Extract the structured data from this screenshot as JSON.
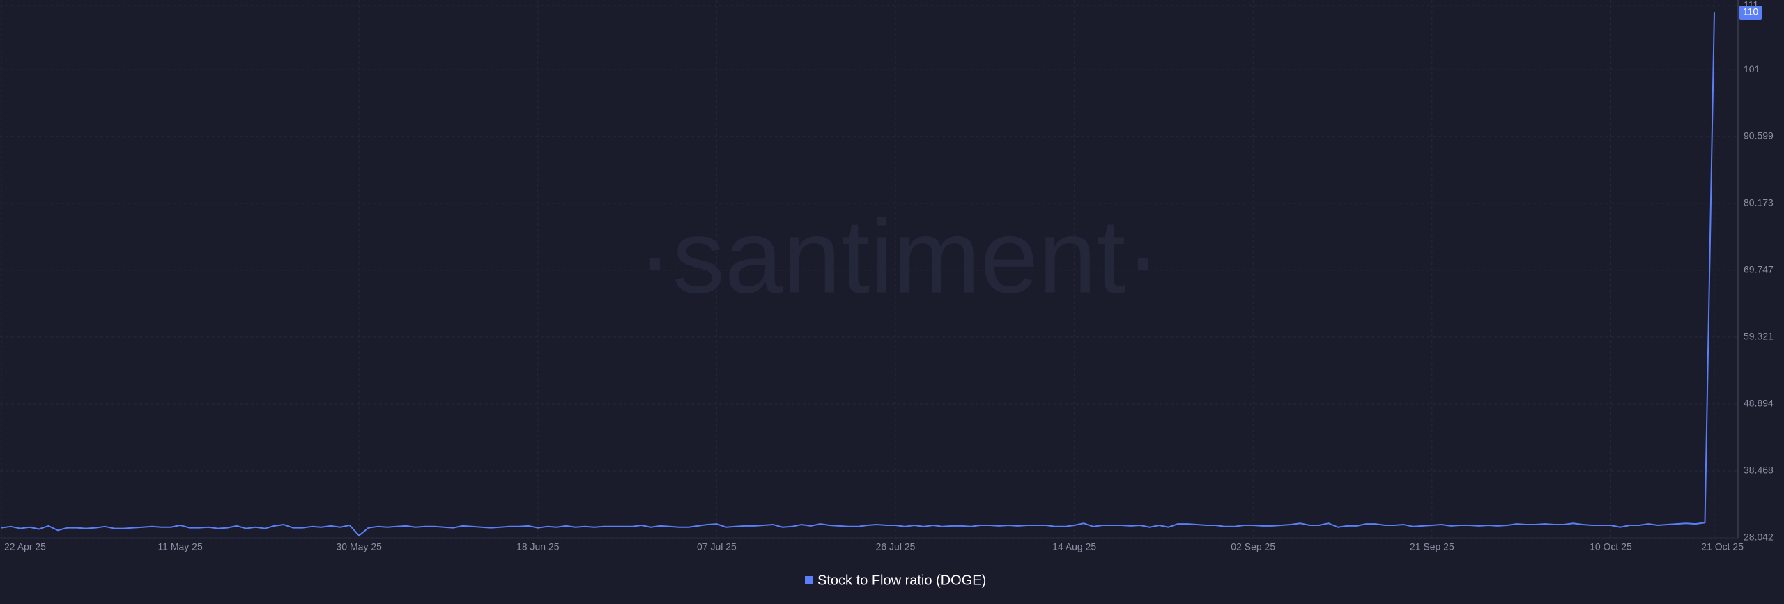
{
  "chart_data": {
    "type": "line",
    "watermark": "·santiment·",
    "categories": [
      "22 Apr 25",
      null,
      null,
      null,
      null,
      null,
      null,
      null,
      null,
      null,
      null,
      null,
      null,
      null,
      null,
      null,
      null,
      null,
      null,
      "11 May 25",
      null,
      null,
      null,
      null,
      null,
      null,
      null,
      null,
      null,
      null,
      null,
      null,
      null,
      null,
      null,
      null,
      null,
      null,
      "30 May 25",
      null,
      null,
      null,
      null,
      null,
      null,
      null,
      null,
      null,
      null,
      null,
      null,
      null,
      null,
      null,
      null,
      null,
      null,
      "18 Jun 25",
      null,
      null,
      null,
      null,
      null,
      null,
      null,
      null,
      null,
      null,
      null,
      null,
      null,
      null,
      null,
      null,
      null,
      null,
      "07 Jul 25",
      null,
      null,
      null,
      null,
      null,
      null,
      null,
      null,
      null,
      null,
      null,
      null,
      null,
      null,
      null,
      null,
      null,
      null,
      "26 Jul 25",
      null,
      null,
      null,
      null,
      null,
      null,
      null,
      null,
      null,
      null,
      null,
      null,
      null,
      null,
      null,
      null,
      null,
      null,
      "14 Aug 25",
      null,
      null,
      null,
      null,
      null,
      null,
      null,
      null,
      null,
      null,
      null,
      null,
      null,
      null,
      null,
      null,
      null,
      null,
      "02 Sep 25",
      null,
      null,
      null,
      null,
      null,
      null,
      null,
      null,
      null,
      null,
      null,
      null,
      null,
      null,
      null,
      null,
      null,
      null,
      "21 Sep 25",
      null,
      null,
      null,
      null,
      null,
      null,
      null,
      null,
      null,
      null,
      null,
      null,
      null,
      null,
      null,
      null,
      null,
      null,
      "10 Oct 25",
      null,
      null,
      null,
      null,
      null,
      null,
      null,
      null,
      null,
      null,
      "21 Oct 25"
    ],
    "series": [
      {
        "name": "Stock to Flow ratio (DOGE)",
        "color": "#5b7ff8",
        "values": [
          29.6,
          29.8,
          29.5,
          29.7,
          29.4,
          29.9,
          29.2,
          29.6,
          29.6,
          29.5,
          29.6,
          29.8,
          29.5,
          29.5,
          29.6,
          29.7,
          29.8,
          29.7,
          29.7,
          30.0,
          29.6,
          29.6,
          29.7,
          29.5,
          29.6,
          29.9,
          29.5,
          29.7,
          29.5,
          29.9,
          30.1,
          29.6,
          29.6,
          29.8,
          29.7,
          29.9,
          29.7,
          30.0,
          28.4,
          29.6,
          29.8,
          29.7,
          29.8,
          29.9,
          29.7,
          29.8,
          29.8,
          29.7,
          29.6,
          29.9,
          29.8,
          29.7,
          29.6,
          29.7,
          29.8,
          29.8,
          29.9,
          29.6,
          29.8,
          29.7,
          29.9,
          29.7,
          29.8,
          29.7,
          29.8,
          29.8,
          29.8,
          29.8,
          30.0,
          29.7,
          29.9,
          29.8,
          29.7,
          29.7,
          29.9,
          30.1,
          30.2,
          29.7,
          29.8,
          29.9,
          29.9,
          30.0,
          30.1,
          29.7,
          29.8,
          30.1,
          29.9,
          30.2,
          30.0,
          29.9,
          29.8,
          29.8,
          30.0,
          30.1,
          30.0,
          30.0,
          29.8,
          30.0,
          29.8,
          30.0,
          29.8,
          29.9,
          29.9,
          29.8,
          30.0,
          30.0,
          29.9,
          30.0,
          29.9,
          30.0,
          30.0,
          30.0,
          29.8,
          29.8,
          30.0,
          30.3,
          29.8,
          30.0,
          30.0,
          30.0,
          29.9,
          30.0,
          29.7,
          30.0,
          29.7,
          30.2,
          30.2,
          30.1,
          30.0,
          30.0,
          29.8,
          29.8,
          30.0,
          30.0,
          29.9,
          29.9,
          30.0,
          30.1,
          30.3,
          30.0,
          30.0,
          30.3,
          29.7,
          29.9,
          29.9,
          30.2,
          30.2,
          30.0,
          30.0,
          30.1,
          29.8,
          29.9,
          30.0,
          30.1,
          29.9,
          30.0,
          30.0,
          29.9,
          30.0,
          29.9,
          30.0,
          30.2,
          30.1,
          30.1,
          30.2,
          30.1,
          30.1,
          30.3,
          30.1,
          30.0,
          30.0,
          30.0,
          29.7,
          30.0,
          30.0,
          30.2,
          30.0,
          30.1,
          30.2,
          30.3,
          30.2,
          30.4,
          110
        ]
      }
    ],
    "ylim": [
      28.042,
      111
    ],
    "yticks": [
      28.042,
      38.468,
      48.894,
      59.321,
      69.747,
      80.173,
      90.599,
      101,
      111
    ],
    "grid": true
  }
}
